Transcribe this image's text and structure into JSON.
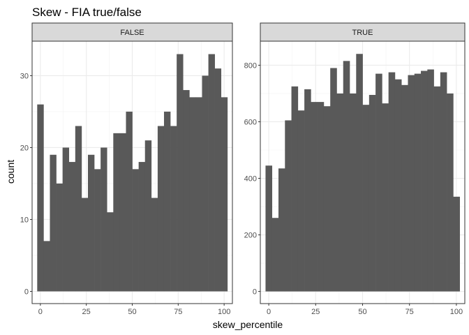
{
  "chart_data": {
    "type": "bar",
    "title": "Skew - FIA true/false",
    "xlabel": "skew_percentile",
    "ylabel": "count",
    "grid": true,
    "bin_width": 3.45,
    "bin_centers": [
      0,
      3.45,
      6.9,
      10.35,
      13.8,
      17.25,
      20.7,
      24.15,
      27.6,
      31.05,
      34.5,
      37.95,
      41.4,
      44.85,
      48.3,
      51.75,
      55.2,
      58.65,
      62.1,
      65.55,
      69.0,
      72.45,
      75.9,
      79.35,
      82.8,
      86.25,
      89.7,
      93.15,
      96.6,
      100.05
    ],
    "panels": [
      {
        "strip_label": "FALSE",
        "xlim": [
          -4.5,
          104.5
        ],
        "ylim": [
          -1.7,
          34.8
        ],
        "x_ticks": [
          0,
          25,
          50,
          75,
          100
        ],
        "x_tick_labels": [
          "0",
          "25",
          "50",
          "75",
          "100"
        ],
        "y_ticks": [
          0,
          10,
          20,
          30
        ],
        "y_tick_labels": [
          "0",
          "10",
          "20",
          "30"
        ],
        "values": [
          26,
          7,
          19,
          15,
          20,
          18,
          23,
          13,
          19,
          17,
          20,
          11,
          22,
          22,
          25,
          17,
          18,
          21,
          13,
          23,
          25,
          23,
          33,
          28,
          27,
          27,
          30,
          33,
          31,
          27
        ]
      },
      {
        "strip_label": "TRUE",
        "xlim": [
          -4.5,
          104.5
        ],
        "ylim": [
          -43,
          885
        ],
        "x_ticks": [
          0,
          25,
          50,
          75,
          100
        ],
        "x_tick_labels": [
          "0",
          "25",
          "50",
          "75",
          "100"
        ],
        "y_ticks": [
          0,
          200,
          400,
          600,
          800
        ],
        "y_tick_labels": [
          "0",
          "200",
          "400",
          "600",
          "800"
        ],
        "values": [
          445,
          260,
          435,
          605,
          725,
          640,
          715,
          670,
          670,
          655,
          790,
          700,
          815,
          700,
          840,
          660,
          695,
          770,
          665,
          775,
          750,
          730,
          765,
          770,
          780,
          785,
          725,
          775,
          700,
          335
        ]
      }
    ]
  }
}
